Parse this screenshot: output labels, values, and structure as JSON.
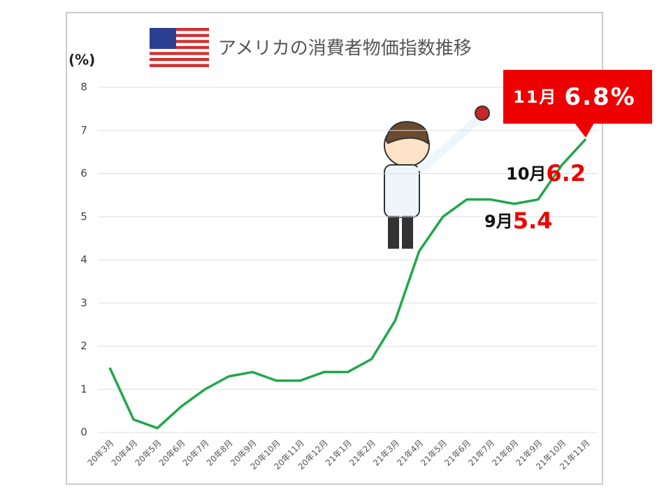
{
  "chart_data": {
    "type": "line",
    "title": "アメリカの消費者物価指数推移",
    "y_label": "(%)",
    "categories": [
      "20年3月",
      "20年4月",
      "20年5月",
      "20年6月",
      "20年7月",
      "20年8月",
      "20年9月",
      "20年10月",
      "20年11月",
      "20年12月",
      "21年1月",
      "21年2月",
      "21年3月",
      "21年4月",
      "21年5月",
      "21年6月",
      "21年7月",
      "21年8月",
      "21年9月",
      "21年10月",
      "21年11月"
    ],
    "series": [
      {
        "color": "#1fa84a",
        "values": [
          1.5,
          0.3,
          0.1,
          0.6,
          1.0,
          1.3,
          1.4,
          1.2,
          1.2,
          1.4,
          1.4,
          1.7,
          2.6,
          4.2,
          5.0,
          5.4,
          5.4,
          5.3,
          5.4,
          6.2,
          6.8
        ]
      }
    ],
    "ylim": [
      0,
      8
    ],
    "yticks": [
      0,
      1,
      2,
      3,
      4,
      5,
      6,
      7,
      8
    ],
    "grid": true,
    "annotations": [
      {
        "label": "9月",
        "value": 5.4
      },
      {
        "label": "10月",
        "value": 6.2
      },
      {
        "label": "11月",
        "value": 6.8,
        "value_label": "6.8%"
      }
    ]
  }
}
